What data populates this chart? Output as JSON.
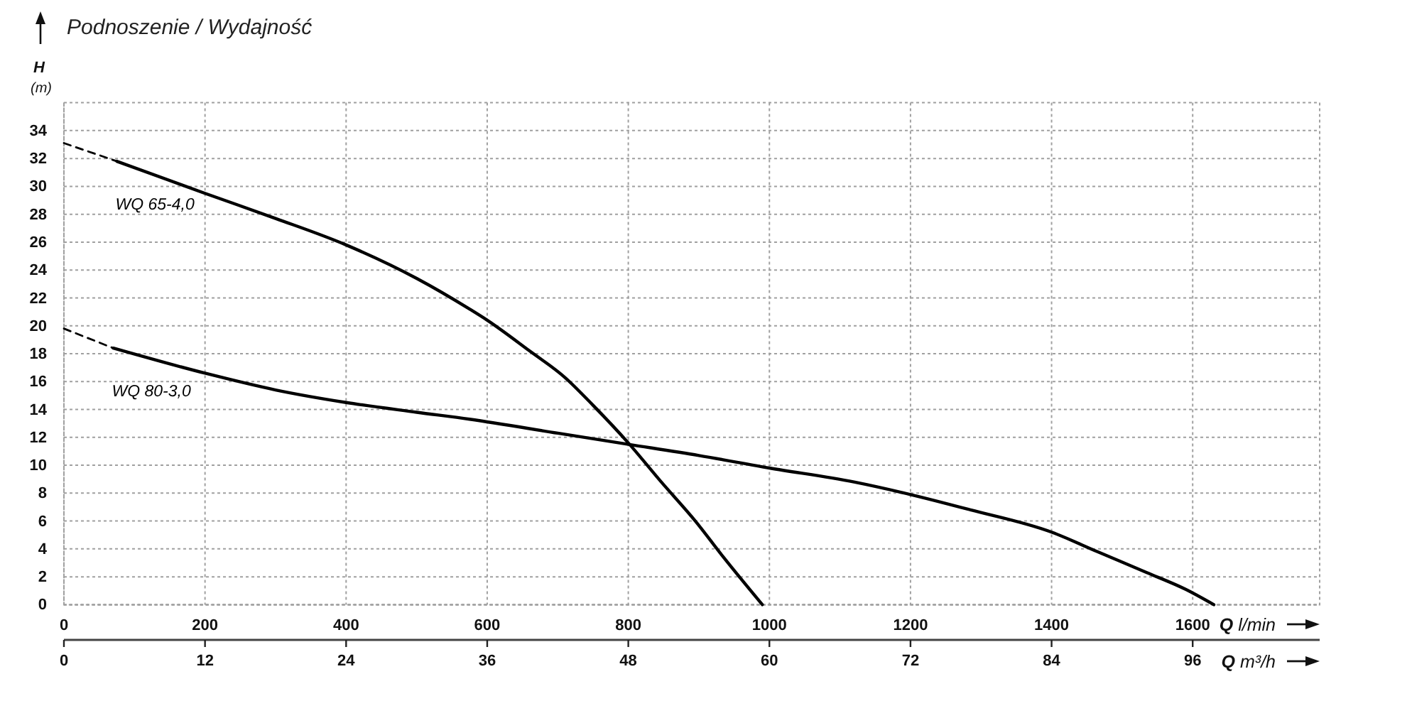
{
  "chart_data": {
    "type": "line",
    "title": "Podnoszenie / Wydajność",
    "xlabel": "Q l/min",
    "x2label": "Q m³/h",
    "ylabel": "H (m)",
    "xlim": [
      0,
      1780
    ],
    "xticks": [
      0,
      200,
      400,
      600,
      800,
      1000,
      1200,
      1400,
      1600
    ],
    "x2lim": [
      0,
      106.8
    ],
    "x2ticks": [
      0,
      12,
      24,
      36,
      48,
      60,
      72,
      84,
      96
    ],
    "ylim": [
      0,
      36
    ],
    "yticks": [
      0,
      2,
      4,
      6,
      8,
      10,
      12,
      14,
      16,
      18,
      20,
      22,
      24,
      26,
      28,
      30,
      32,
      34
    ],
    "grid": true,
    "series": [
      {
        "name": "WQ 65-4,0",
        "color": "#000000",
        "line_style": "solid",
        "x": [
          75,
          200,
          300,
          400,
          500,
          575,
          600,
          660,
          710,
          750,
          800,
          845,
          895,
          935,
          990
        ],
        "values": [
          31.8,
          29.5,
          27.7,
          25.8,
          23.4,
          21.2,
          20.4,
          18.2,
          16.3,
          14.3,
          11.6,
          8.9,
          6.0,
          3.4,
          0
        ]
      },
      {
        "color": "#000000",
        "line_style": "dashed",
        "x": [
          0,
          75
        ],
        "values": [
          33.1,
          31.8
        ]
      },
      {
        "name": "WQ 80-3,0",
        "color": "#000000",
        "line_style": "solid",
        "x": [
          70,
          200,
          300,
          400,
          500,
          575,
          700,
          800,
          900,
          1000,
          1120,
          1200,
          1285,
          1400,
          1465,
          1535,
          1590,
          1630
        ],
        "values": [
          18.4,
          16.6,
          15.4,
          14.5,
          13.8,
          13.3,
          12.3,
          11.5,
          10.7,
          9.8,
          8.8,
          7.9,
          6.8,
          5.2,
          3.8,
          2.3,
          1.1,
          0
        ]
      },
      {
        "color": "#000000",
        "line_style": "dashed",
        "x": [
          0,
          70
        ],
        "values": [
          19.8,
          18.4
        ]
      }
    ]
  }
}
